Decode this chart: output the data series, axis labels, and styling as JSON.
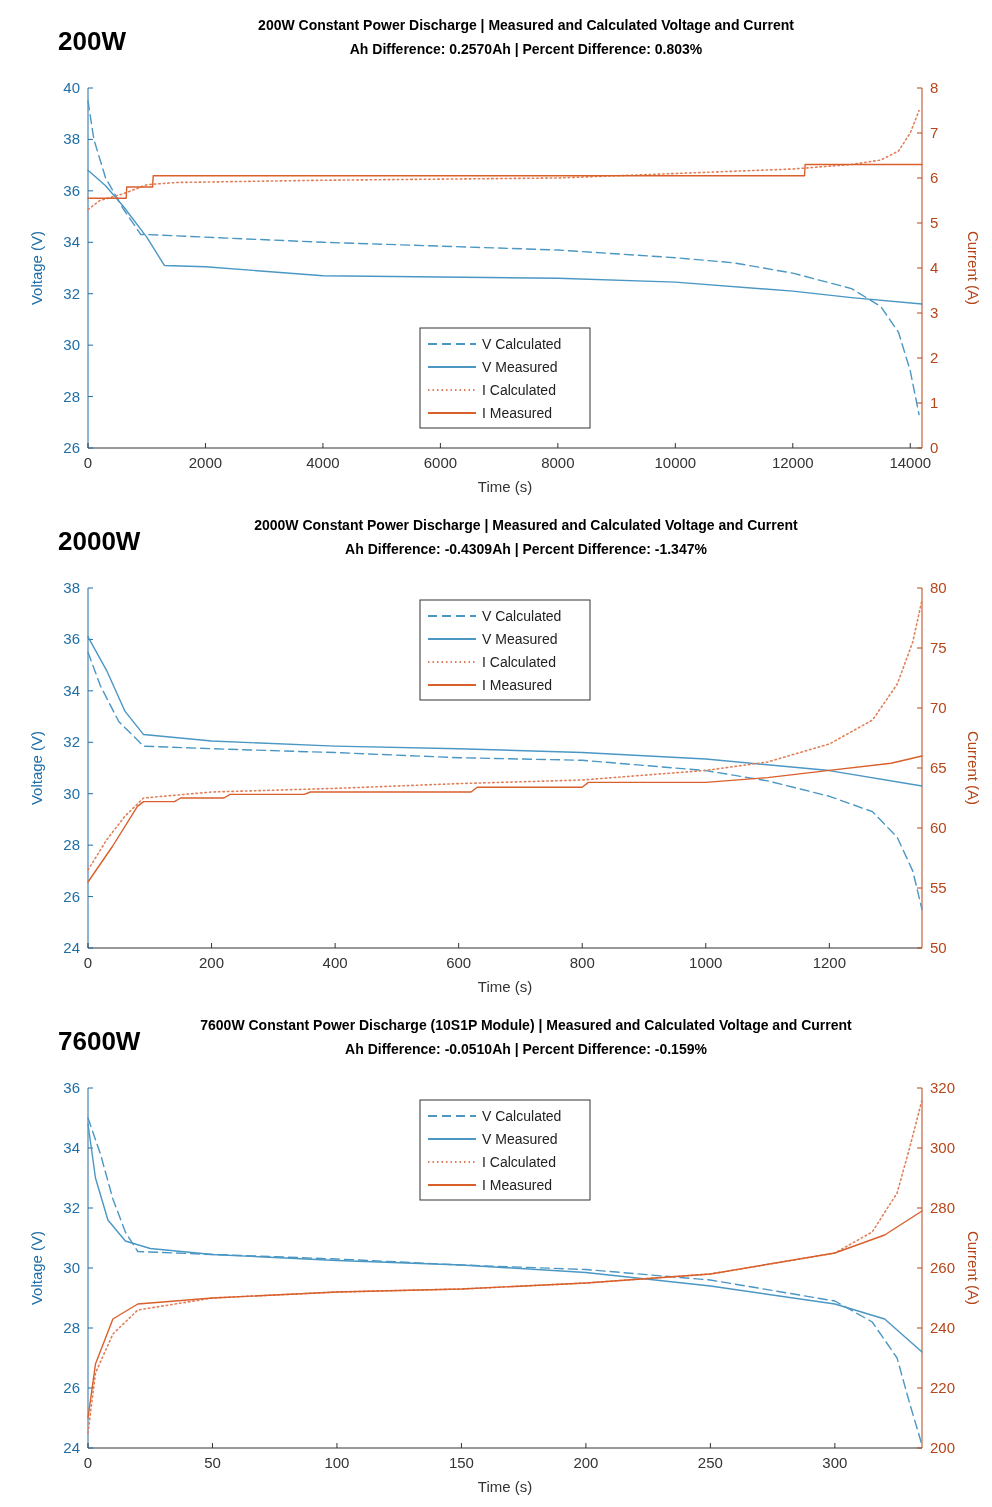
{
  "chart_data": [
    {
      "type": "line",
      "title": "200W Constant Power Discharge | Measured and Calculated Voltage and Current",
      "subtitle": "Ah Difference: 0.2570Ah | Percent Difference: 0.803%",
      "annotations": [
        "200W"
      ],
      "xlabel": "Time (s)",
      "ylabel": "Voltage (V)",
      "y2label": "Current (A)",
      "xlim": [
        0,
        14200
      ],
      "xticks": [
        0,
        2000,
        4000,
        6000,
        8000,
        10000,
        12000,
        14000
      ],
      "ylim": [
        26,
        40
      ],
      "yticks": [
        26,
        28,
        30,
        32,
        34,
        36,
        38,
        40
      ],
      "y2lim": [
        0,
        8
      ],
      "y2ticks": [
        0,
        1,
        2,
        3,
        4,
        5,
        6,
        7,
        8
      ],
      "legend": "bottom",
      "grid": false,
      "series": [
        {
          "name": "V Calculated",
          "color": "#4a97c4",
          "line_style": "dashed",
          "x": [
            0,
            100,
            300,
            600,
            900,
            1000,
            4000,
            8000,
            10000,
            11000,
            12000,
            13000,
            13500,
            13800,
            14000,
            14150
          ],
          "values": [
            39.5,
            38,
            36.5,
            35.3,
            34.3,
            34.3,
            34.0,
            33.7,
            33.4,
            33.2,
            32.8,
            32.2,
            31.5,
            30.5,
            29,
            27.3
          ]
        },
        {
          "name": "V Measured",
          "color": "#4a97c4",
          "line_style": "solid",
          "x": [
            0,
            300,
            600,
            1000,
            1300,
            2000,
            4000,
            8000,
            10000,
            12000,
            13000,
            14200
          ],
          "values": [
            36.8,
            36.2,
            35.4,
            34.2,
            33.1,
            33.05,
            32.7,
            32.6,
            32.45,
            32.1,
            31.85,
            31.6
          ]
        },
        {
          "name": "I Calculated",
          "color": "#e0805a",
          "line_style": "dotted",
          "axis": "y2",
          "x": [
            0,
            200,
            600,
            1000,
            1500,
            4000,
            8000,
            12000,
            13000,
            13500,
            13800,
            14000,
            14150
          ],
          "values": [
            5.3,
            5.5,
            5.65,
            5.85,
            5.9,
            5.95,
            6.0,
            6.2,
            6.3,
            6.4,
            6.6,
            7.0,
            7.5
          ]
        },
        {
          "name": "I Measured",
          "color": "#d95f2b",
          "line_style": "solid",
          "axis": "y2",
          "x": [
            0,
            650,
            660,
            1100,
            1110,
            12200,
            12210,
            14200
          ],
          "values": [
            5.55,
            5.55,
            5.8,
            5.8,
            6.05,
            6.05,
            6.3,
            6.3
          ]
        }
      ]
    },
    {
      "type": "line",
      "title": "2000W Constant Power Discharge | Measured and Calculated Voltage and Current",
      "subtitle": "Ah Difference: -0.4309Ah | Percent Difference: -1.347%",
      "annotations": [
        "2000W"
      ],
      "xlabel": "Time (s)",
      "ylabel": "Voltage (V)",
      "y2label": "Current (A)",
      "xlim": [
        0,
        1350
      ],
      "xticks": [
        0,
        200,
        400,
        600,
        800,
        1000,
        1200
      ],
      "ylim": [
        24,
        38
      ],
      "yticks": [
        24,
        26,
        28,
        30,
        32,
        34,
        36,
        38
      ],
      "y2lim": [
        50,
        80
      ],
      "y2ticks": [
        50,
        55,
        60,
        65,
        70,
        75,
        80
      ],
      "legend": "top",
      "grid": false,
      "series": [
        {
          "name": "V Calculated",
          "color": "#4a97c4",
          "line_style": "dashed",
          "x": [
            0,
            20,
            50,
            90,
            200,
            400,
            600,
            800,
            1000,
            1100,
            1200,
            1270,
            1310,
            1335,
            1350
          ],
          "values": [
            35.5,
            34.2,
            32.8,
            31.85,
            31.75,
            31.6,
            31.4,
            31.3,
            30.9,
            30.5,
            29.9,
            29.3,
            28.3,
            27,
            25.5
          ]
        },
        {
          "name": "V Measured",
          "color": "#4a97c4",
          "line_style": "solid",
          "x": [
            0,
            30,
            60,
            90,
            200,
            400,
            600,
            800,
            1000,
            1200,
            1350
          ],
          "values": [
            36.1,
            34.8,
            33.2,
            32.3,
            32.05,
            31.85,
            31.75,
            31.6,
            31.35,
            30.9,
            30.3
          ]
        },
        {
          "name": "I Calculated",
          "color": "#e0805a",
          "line_style": "dotted",
          "axis": "y2",
          "x": [
            0,
            30,
            60,
            90,
            200,
            400,
            600,
            800,
            1000,
            1100,
            1200,
            1270,
            1310,
            1335,
            1350
          ],
          "values": [
            56.5,
            59,
            61,
            62.5,
            63,
            63.3,
            63.7,
            64,
            64.8,
            65.5,
            67,
            69,
            72,
            75.5,
            79
          ]
        },
        {
          "name": "I Measured",
          "color": "#d95f2b",
          "line_style": "solid",
          "axis": "y2",
          "x": [
            0,
            40,
            80,
            90,
            140,
            150,
            220,
            230,
            350,
            360,
            620,
            630,
            800,
            810,
            1000,
            1100,
            1200,
            1300,
            1350
          ],
          "values": [
            55.5,
            58.5,
            61.8,
            62.2,
            62.2,
            62.5,
            62.5,
            62.8,
            62.8,
            63,
            63,
            63.4,
            63.4,
            63.8,
            63.8,
            64.2,
            64.8,
            65.4,
            66
          ]
        }
      ]
    },
    {
      "type": "line",
      "title": "7600W Constant Power Discharge (10S1P Module) | Measured and Calculated Voltage and Current",
      "subtitle": "Ah Difference: -0.0510Ah | Percent Difference: -0.159%",
      "annotations": [
        "7600W"
      ],
      "xlabel": "Time (s)",
      "ylabel": "Voltage (V)",
      "y2label": "Current (A)",
      "xlim": [
        0,
        335
      ],
      "xticks": [
        0,
        50,
        100,
        150,
        200,
        250,
        300
      ],
      "ylim": [
        24,
        36
      ],
      "yticks": [
        24,
        26,
        28,
        30,
        32,
        34,
        36
      ],
      "y2lim": [
        200,
        320
      ],
      "y2ticks": [
        200,
        220,
        240,
        260,
        280,
        300,
        320
      ],
      "legend": "top",
      "grid": false,
      "series": [
        {
          "name": "V Calculated",
          "color": "#4a97c4",
          "line_style": "dashed",
          "x": [
            0,
            5,
            10,
            15,
            20,
            50,
            100,
            150,
            200,
            250,
            300,
            315,
            325,
            330,
            335
          ],
          "values": [
            35,
            33.8,
            32.3,
            31.2,
            30.55,
            30.45,
            30.3,
            30.1,
            29.95,
            29.6,
            28.9,
            28.2,
            27,
            25.5,
            24.1
          ]
        },
        {
          "name": "V Measured",
          "color": "#4a97c4",
          "line_style": "solid",
          "x": [
            0,
            3,
            8,
            15,
            25,
            50,
            100,
            150,
            200,
            250,
            300,
            320,
            335
          ],
          "values": [
            34.8,
            33,
            31.6,
            30.9,
            30.65,
            30.45,
            30.25,
            30.1,
            29.85,
            29.4,
            28.8,
            28.3,
            27.2
          ]
        },
        {
          "name": "I Calculated",
          "color": "#e0805a",
          "line_style": "dotted",
          "axis": "y2",
          "x": [
            0,
            3,
            10,
            20,
            50,
            100,
            150,
            200,
            250,
            300,
            315,
            325,
            330,
            335
          ],
          "values": [
            205,
            225,
            238,
            246,
            250,
            252,
            253,
            255,
            258,
            265,
            272,
            285,
            300,
            316
          ]
        },
        {
          "name": "I Measured",
          "color": "#d95f2b",
          "line_style": "solid",
          "axis": "y2",
          "x": [
            0,
            3,
            10,
            20,
            50,
            100,
            150,
            200,
            250,
            300,
            320,
            335
          ],
          "values": [
            210,
            228,
            243,
            248,
            250,
            252,
            253,
            255,
            258,
            265,
            271,
            279
          ]
        }
      ]
    }
  ]
}
